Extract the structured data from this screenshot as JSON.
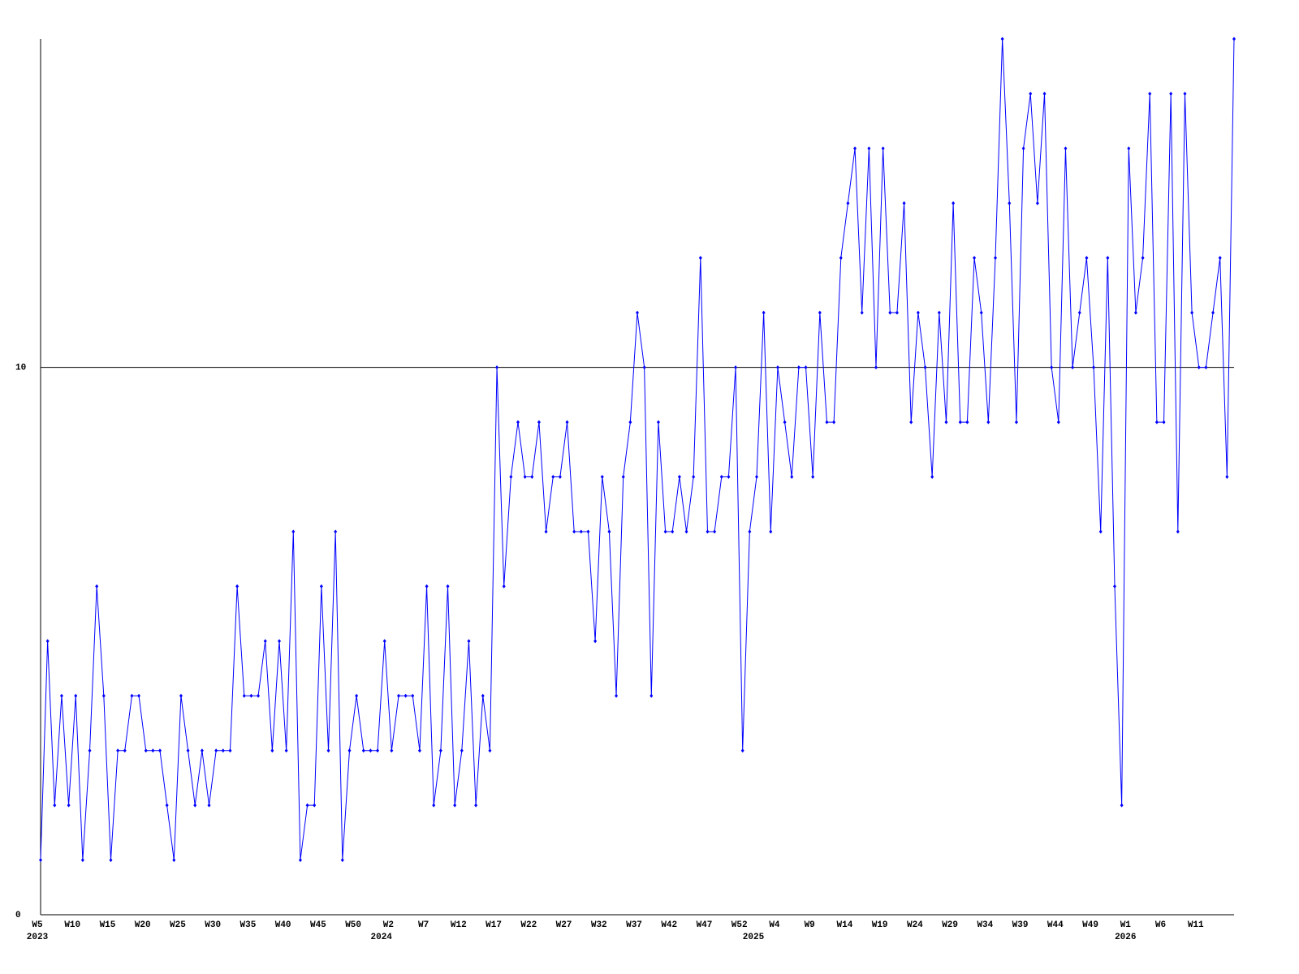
{
  "chart_data": {
    "type": "line",
    "categories": [
      "W5",
      null,
      null,
      null,
      null,
      "W10",
      null,
      null,
      null,
      null,
      "W15",
      null,
      null,
      null,
      null,
      "W20",
      null,
      null,
      null,
      null,
      "W25",
      null,
      null,
      null,
      null,
      "W30",
      null,
      null,
      null,
      null,
      "W35",
      null,
      null,
      null,
      null,
      "W40",
      null,
      null,
      null,
      null,
      "W45",
      null,
      null,
      null,
      null,
      "W50",
      null,
      null,
      null,
      null,
      "W2",
      null,
      null,
      null,
      null,
      "W7",
      null,
      null,
      null,
      null,
      "W12",
      null,
      null,
      null,
      null,
      "W17",
      null,
      null,
      null,
      null,
      "W22",
      null,
      null,
      null,
      null,
      "W27",
      null,
      null,
      null,
      null,
      "W32",
      null,
      null,
      null,
      null,
      "W37",
      null,
      null,
      null,
      null,
      "W42",
      null,
      null,
      null,
      null,
      "W47",
      null,
      null,
      null,
      null,
      "W52",
      null,
      null,
      null,
      null,
      "W4",
      null,
      null,
      null,
      null,
      "W9",
      null,
      null,
      null,
      null,
      "W14",
      null,
      null,
      null,
      null,
      "W19",
      null,
      null,
      null,
      null,
      "W24",
      null,
      null,
      null,
      null,
      "W29",
      null,
      null,
      null,
      null,
      "W34",
      null,
      null,
      null,
      null,
      "W39",
      null,
      null,
      null,
      null,
      "W44",
      null,
      null,
      null,
      null,
      "W49",
      null,
      null,
      null,
      null,
      "W1",
      null,
      null,
      null,
      null,
      "W6",
      null,
      null,
      null,
      null,
      "W11",
      null,
      null,
      null,
      null,
      null
    ],
    "year_labels": [
      "2023",
      null,
      null,
      null,
      null,
      null,
      null,
      null,
      null,
      null,
      null,
      null,
      null,
      null,
      null,
      null,
      null,
      null,
      null,
      null,
      null,
      null,
      null,
      null,
      null,
      null,
      null,
      null,
      null,
      null,
      null,
      null,
      null,
      null,
      null,
      null,
      null,
      null,
      null,
      null,
      null,
      null,
      null,
      null,
      null,
      null,
      null,
      null,
      null,
      "2024",
      null,
      null,
      null,
      null,
      null,
      null,
      null,
      null,
      null,
      null,
      null,
      null,
      null,
      null,
      null,
      null,
      null,
      null,
      null,
      null,
      null,
      null,
      null,
      null,
      null,
      null,
      null,
      null,
      null,
      null,
      null,
      null,
      null,
      null,
      null,
      null,
      null,
      null,
      null,
      null,
      null,
      null,
      null,
      null,
      null,
      null,
      null,
      null,
      null,
      null,
      null,
      null,
      "2025",
      null,
      null,
      null,
      null,
      null,
      null,
      null,
      null,
      null,
      null,
      null,
      null,
      null,
      null,
      null,
      null,
      null,
      null,
      null,
      null,
      null,
      null,
      null,
      null,
      null,
      null,
      null,
      null,
      null,
      null,
      null,
      null,
      null,
      null,
      null,
      null,
      null,
      null,
      null,
      null,
      null,
      null,
      null,
      null,
      null,
      null,
      null,
      null,
      null,
      null,
      null,
      null,
      "2026",
      null,
      null,
      null,
      null,
      null,
      null,
      null,
      null,
      null,
      null,
      null,
      null,
      null,
      null,
      null
    ],
    "values": [
      1,
      5,
      2,
      4,
      2,
      4,
      1,
      3,
      6,
      4,
      1,
      3,
      3,
      4,
      4,
      3,
      3,
      3,
      2,
      1,
      4,
      3,
      2,
      3,
      2,
      3,
      3,
      3,
      6,
      4,
      4,
      4,
      5,
      3,
      5,
      3,
      7,
      1,
      2,
      2,
      6,
      3,
      7,
      1,
      3,
      4,
      3,
      3,
      3,
      5,
      3,
      4,
      4,
      4,
      3,
      6,
      2,
      3,
      6,
      2,
      3,
      5,
      2,
      4,
      3,
      10,
      6,
      8,
      9,
      8,
      8,
      9,
      7,
      8,
      8,
      9,
      7,
      7,
      7,
      5,
      8,
      7,
      4,
      8,
      9,
      11,
      10,
      4,
      9,
      7,
      7,
      8,
      7,
      8,
      12,
      7,
      7,
      8,
      8,
      10,
      3,
      7,
      8,
      11,
      7,
      10,
      9,
      8,
      10,
      10,
      8,
      11,
      9,
      9,
      12,
      13,
      14,
      11,
      14,
      10,
      14,
      11,
      11,
      13,
      9,
      11,
      10,
      8,
      11,
      9,
      13,
      9,
      9,
      12,
      11,
      9,
      12,
      16,
      13,
      9,
      14,
      15,
      13,
      15,
      10,
      9,
      14,
      10,
      11,
      12,
      10,
      7,
      12,
      6,
      2,
      14,
      11,
      12,
      15,
      9,
      9,
      15,
      7,
      15,
      11,
      10,
      10,
      11,
      12,
      8,
      16
    ],
    "color": "#0000ff",
    "ylim": [
      0,
      16
    ],
    "yticks": [
      0,
      10
    ],
    "grid": true
  }
}
